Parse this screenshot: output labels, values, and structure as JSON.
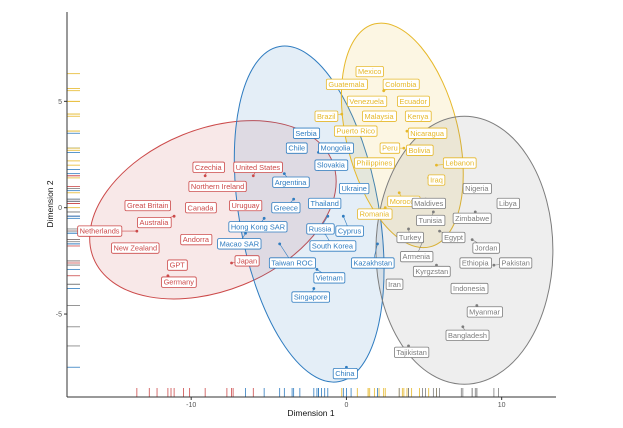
{
  "chart_data": {
    "type": "scatter",
    "title": "",
    "xlabel": "Dimension 1",
    "ylabel": "Dimension 2",
    "xlim": [
      -18,
      13.5
    ],
    "ylim": [
      -8.9,
      9.2
    ],
    "x_ticks": [
      -10,
      0,
      10
    ],
    "y_ticks": [
      -5,
      0,
      5
    ],
    "x_tick_labels": [
      "-10",
      "0",
      "10"
    ],
    "y_tick_labels": [
      "-5",
      "0",
      "5"
    ],
    "grid": false,
    "legend": "none",
    "rug_plots": true,
    "colors": {
      "red": "#cc4a4a",
      "blue": "#2f7cc0",
      "yellow": "#e6b82a",
      "gray": "#7d7d7d"
    },
    "ellipses": [
      {
        "cluster": "red",
        "cx": -8.6,
        "cy": -0.1,
        "rx": 8.3,
        "ry": 3.8,
        "angle_deg": 22
      },
      {
        "cluster": "blue",
        "cx": -2.4,
        "cy": -0.3,
        "rx": 4.5,
        "ry": 8.0,
        "angle_deg": 10
      },
      {
        "cluster": "yellow",
        "cx": 3.6,
        "cy": 3.4,
        "rx": 3.6,
        "ry": 5.4,
        "angle_deg": 14
      },
      {
        "cluster": "gray",
        "cx": 7.6,
        "cy": -2.0,
        "rx": 5.7,
        "ry": 6.3,
        "angle_deg": 0
      }
    ],
    "points": [
      {
        "label": "Czechia",
        "cluster": "red",
        "x": -9.1,
        "y": 1.5,
        "lx": -8.9,
        "ly": 1.9
      },
      {
        "label": "United States",
        "cluster": "red",
        "x": -6.0,
        "y": 1.5,
        "lx": -5.7,
        "ly": 1.9
      },
      {
        "label": "Northern Ireland",
        "cluster": "red",
        "x": -7.7,
        "y": 1.0,
        "lx": -8.3,
        "ly": 1.0
      },
      {
        "label": "Great Britain",
        "cluster": "red",
        "x": -12.7,
        "y": 0.2,
        "lx": -12.8,
        "ly": 0.1
      },
      {
        "label": "Canada",
        "cluster": "red",
        "x": -10.1,
        "y": 0.2,
        "lx": -9.4,
        "ly": 0.0
      },
      {
        "label": "Uruguay",
        "cluster": "red",
        "x": -7.3,
        "y": 0.3,
        "lx": -6.5,
        "ly": 0.1
      },
      {
        "label": "Australia",
        "cluster": "red",
        "x": -11.1,
        "y": -0.4,
        "lx": -12.4,
        "ly": -0.7
      },
      {
        "label": "Netherlands",
        "cluster": "red",
        "x": -13.5,
        "y": -1.1,
        "lx": -15.9,
        "ly": -1.1
      },
      {
        "label": "Andorra",
        "cluster": "red",
        "x": -10.5,
        "y": -1.5,
        "lx": -9.7,
        "ly": -1.5
      },
      {
        "label": "New Zealand",
        "cluster": "red",
        "x": -12.2,
        "y": -1.8,
        "lx": -13.6,
        "ly": -1.9
      },
      {
        "label": "GPT",
        "cluster": "red",
        "x": -11.3,
        "y": -2.5,
        "lx": -10.9,
        "ly": -2.7
      },
      {
        "label": "Japan",
        "cluster": "red",
        "x": -7.4,
        "y": -2.6,
        "lx": -6.4,
        "ly": -2.5
      },
      {
        "label": "Germany",
        "cluster": "red",
        "x": -11.5,
        "y": -3.2,
        "lx": -10.8,
        "ly": -3.5
      },
      {
        "label": "Serbia",
        "cluster": "blue",
        "x": -3.0,
        "y": 3.5,
        "lx": -2.6,
        "ly": 3.5
      },
      {
        "label": "Chile",
        "cluster": "blue",
        "x": -3.5,
        "y": 2.8,
        "lx": -3.2,
        "ly": 2.8
      },
      {
        "label": "Mongolia",
        "cluster": "blue",
        "x": -1.8,
        "y": 2.6,
        "lx": -0.7,
        "ly": 2.8
      },
      {
        "label": "Slovakia",
        "cluster": "blue",
        "x": -1.8,
        "y": 1.8,
        "lx": -1.0,
        "ly": 2.0
      },
      {
        "label": "Argentina",
        "cluster": "blue",
        "x": -4.0,
        "y": 1.6,
        "lx": -3.6,
        "ly": 1.2
      },
      {
        "label": "Ukraine",
        "cluster": "blue",
        "x": 0.3,
        "y": 0.8,
        "lx": 0.5,
        "ly": 0.9
      },
      {
        "label": "Thailand",
        "cluster": "blue",
        "x": -1.6,
        "y": 0.3,
        "lx": -1.4,
        "ly": 0.2
      },
      {
        "label": "Greece",
        "cluster": "blue",
        "x": -3.4,
        "y": 0.4,
        "lx": -3.9,
        "ly": 0.0
      },
      {
        "label": "Hong Kong SAR",
        "cluster": "blue",
        "x": -5.3,
        "y": -0.5,
        "lx": -5.7,
        "ly": -0.9
      },
      {
        "label": "Russia",
        "cluster": "blue",
        "x": -1.2,
        "y": -0.4,
        "lx": -1.7,
        "ly": -1.0
      },
      {
        "label": "Cyprus",
        "cluster": "blue",
        "x": -0.2,
        "y": -0.4,
        "lx": 0.2,
        "ly": -1.1
      },
      {
        "label": "Macao SAR",
        "cluster": "blue",
        "x": -6.5,
        "y": -1.2,
        "lx": -6.9,
        "ly": -1.7
      },
      {
        "label": "South Korea",
        "cluster": "blue",
        "x": -1.4,
        "y": -1.2,
        "lx": -0.9,
        "ly": -1.8
      },
      {
        "label": "Taiwan ROC",
        "cluster": "blue",
        "x": -4.3,
        "y": -1.7,
        "lx": -3.5,
        "ly": -2.6
      },
      {
        "label": "Kazakhstan",
        "cluster": "blue",
        "x": 2.0,
        "y": -1.7,
        "lx": 1.7,
        "ly": -2.6
      },
      {
        "label": "Vietnam",
        "cluster": "blue",
        "x": -1.9,
        "y": -2.9,
        "lx": -1.1,
        "ly": -3.3
      },
      {
        "label": "Singapore",
        "cluster": "blue",
        "x": -2.1,
        "y": -3.8,
        "lx": -2.3,
        "ly": -4.2
      },
      {
        "label": "China",
        "cluster": "blue",
        "x": 0.0,
        "y": -7.5,
        "lx": -0.1,
        "ly": -7.8
      },
      {
        "label": "Mexico",
        "cluster": "yellow",
        "x": 1.5,
        "y": 6.3,
        "lx": 1.5,
        "ly": 6.4
      },
      {
        "label": "Guatemala",
        "cluster": "yellow",
        "x": 0.7,
        "y": 5.6,
        "lx": 0.0,
        "ly": 5.8
      },
      {
        "label": "Colombia",
        "cluster": "yellow",
        "x": 2.4,
        "y": 5.5,
        "lx": 3.5,
        "ly": 5.8
      },
      {
        "label": "Venezuela",
        "cluster": "yellow",
        "x": 1.4,
        "y": 5.0,
        "lx": 1.3,
        "ly": 5.0
      },
      {
        "label": "Ecuador",
        "cluster": "yellow",
        "x": 3.6,
        "y": 5.0,
        "lx": 4.3,
        "ly": 5.0
      },
      {
        "label": "Brazil",
        "cluster": "yellow",
        "x": -0.3,
        "y": 4.4,
        "lx": -1.3,
        "ly": 4.3
      },
      {
        "label": "Malaysia",
        "cluster": "yellow",
        "x": 1.8,
        "y": 4.4,
        "lx": 2.1,
        "ly": 4.3
      },
      {
        "label": "Kenya",
        "cluster": "yellow",
        "x": 4.2,
        "y": 4.3,
        "lx": 4.6,
        "ly": 4.3
      },
      {
        "label": "Puerto Rico",
        "cluster": "yellow",
        "x": 1.4,
        "y": 3.6,
        "lx": 0.6,
        "ly": 3.6
      },
      {
        "label": "Nicaragua",
        "cluster": "yellow",
        "x": 3.9,
        "y": 3.6,
        "lx": 5.2,
        "ly": 3.5
      },
      {
        "label": "Peru",
        "cluster": "yellow",
        "x": 3.7,
        "y": 2.8,
        "lx": 2.8,
        "ly": 2.8
      },
      {
        "label": "Bolivia",
        "cluster": "yellow",
        "x": 4.7,
        "y": 2.7,
        "lx": 4.7,
        "ly": 2.7
      },
      {
        "label": "Philippines",
        "cluster": "yellow",
        "x": 2.1,
        "y": 2.2,
        "lx": 1.8,
        "ly": 2.1
      },
      {
        "label": "Lebanon",
        "cluster": "yellow",
        "x": 5.8,
        "y": 2.0,
        "lx": 7.3,
        "ly": 2.1
      },
      {
        "label": "Iraq",
        "cluster": "yellow",
        "x": 5.3,
        "y": 1.4,
        "lx": 5.8,
        "ly": 1.3
      },
      {
        "label": "Morocco",
        "cluster": "yellow",
        "x": 3.4,
        "y": 0.7,
        "lx": 3.7,
        "ly": 0.3
      },
      {
        "label": "Romania",
        "cluster": "yellow",
        "x": 2.5,
        "y": 0.0,
        "lx": 1.8,
        "ly": -0.3
      },
      {
        "label": "Nigeria",
        "cluster": "gray",
        "x": 8.4,
        "y": 0.9,
        "lx": 8.4,
        "ly": 0.9
      },
      {
        "label": "Libya",
        "cluster": "gray",
        "x": 9.8,
        "y": 0.3,
        "lx": 10.4,
        "ly": 0.2
      },
      {
        "label": "Maldives",
        "cluster": "gray",
        "x": 5.1,
        "y": 0.4,
        "lx": 5.3,
        "ly": 0.2
      },
      {
        "label": "Tunisia",
        "cluster": "gray",
        "x": 5.6,
        "y": -0.2,
        "lx": 5.4,
        "ly": -0.6
      },
      {
        "label": "Zimbabwe",
        "cluster": "gray",
        "x": 8.3,
        "y": -0.2,
        "lx": 8.1,
        "ly": -0.5
      },
      {
        "label": "Turkey",
        "cluster": "gray",
        "x": 4.0,
        "y": -1.0,
        "lx": 4.1,
        "ly": -1.4
      },
      {
        "label": "Egypt",
        "cluster": "gray",
        "x": 6.0,
        "y": -1.1,
        "lx": 6.9,
        "ly": -1.4
      },
      {
        "label": "Jordan",
        "cluster": "gray",
        "x": 8.1,
        "y": -1.5,
        "lx": 9.0,
        "ly": -1.9
      },
      {
        "label": "Armenia",
        "cluster": "gray",
        "x": 4.9,
        "y": -1.6,
        "lx": 4.5,
        "ly": -2.3
      },
      {
        "label": "Ethiopia",
        "cluster": "gray",
        "x": 7.4,
        "y": -2.5,
        "lx": 8.3,
        "ly": -2.6
      },
      {
        "label": "Pakistan",
        "cluster": "gray",
        "x": 9.5,
        "y": -2.7,
        "lx": 10.9,
        "ly": -2.6
      },
      {
        "label": "Kyrgzstan",
        "cluster": "gray",
        "x": 5.8,
        "y": -2.7,
        "lx": 5.5,
        "ly": -3.0
      },
      {
        "label": "Iran",
        "cluster": "gray",
        "x": 3.4,
        "y": -3.6,
        "lx": 3.1,
        "ly": -3.6
      },
      {
        "label": "Indonesia",
        "cluster": "gray",
        "x": 8.1,
        "y": -3.6,
        "lx": 7.9,
        "ly": -3.8
      },
      {
        "label": "Myanmar",
        "cluster": "gray",
        "x": 8.4,
        "y": -4.6,
        "lx": 8.9,
        "ly": -4.9
      },
      {
        "label": "Bangladesh",
        "cluster": "gray",
        "x": 7.5,
        "y": -5.6,
        "lx": 7.8,
        "ly": -6.0
      },
      {
        "label": "Tajikistan",
        "cluster": "gray",
        "x": 4.0,
        "y": -6.5,
        "lx": 4.2,
        "ly": -6.8
      }
    ]
  }
}
